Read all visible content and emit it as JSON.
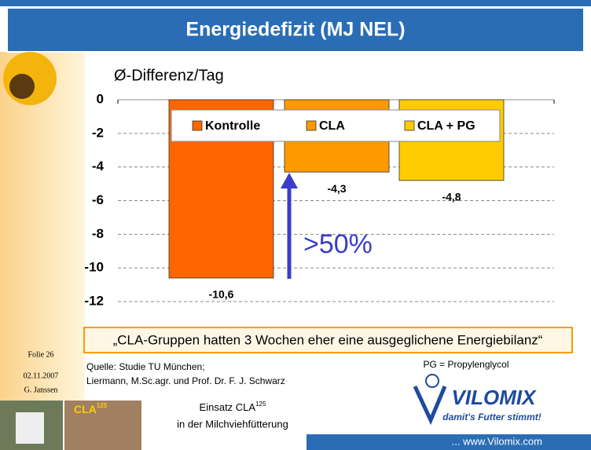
{
  "chart_data": {
    "type": "bar",
    "title": "Energiedefizit (MJ NEL)",
    "ylabel": "Ø-Differenz/Tag",
    "categories": [
      "Kontrolle",
      "CLA",
      "CLA + PG"
    ],
    "values": [
      -10.6,
      -4.3,
      -4.8
    ],
    "value_labels": [
      "-10,6",
      "-4,3",
      "-4,8"
    ],
    "colors": [
      "#ff6600",
      "#ff9900",
      "#ffcc00"
    ],
    "ylim": [
      0,
      -12
    ],
    "yticks": [
      0,
      -2,
      -4,
      -6,
      -8,
      -10,
      -12
    ],
    "grid": true,
    "annotation": ">50%"
  },
  "slide": {
    "statement": "„CLA-Gruppen hatten 3 Wochen eher eine ausgeglichene Energiebilanz“",
    "folie": "Folie 26",
    "date": "02.11.2007",
    "author": "G. Janssen",
    "source": [
      "Quelle: Studie TU München;",
      "Liermann, M.Sc.agr. und Prof. Dr. F. J. Schwarz"
    ],
    "footnote": "PG = Propylenglycol",
    "logo": "VILOMIX",
    "slogan": "damit's Futter stimmt!",
    "photo_label": "CLA",
    "photo_sup": "125",
    "topic": [
      "Einsatz CLA",
      "125",
      "in der Milchviehfütterung"
    ],
    "website": "... www.Vilomix.com"
  }
}
